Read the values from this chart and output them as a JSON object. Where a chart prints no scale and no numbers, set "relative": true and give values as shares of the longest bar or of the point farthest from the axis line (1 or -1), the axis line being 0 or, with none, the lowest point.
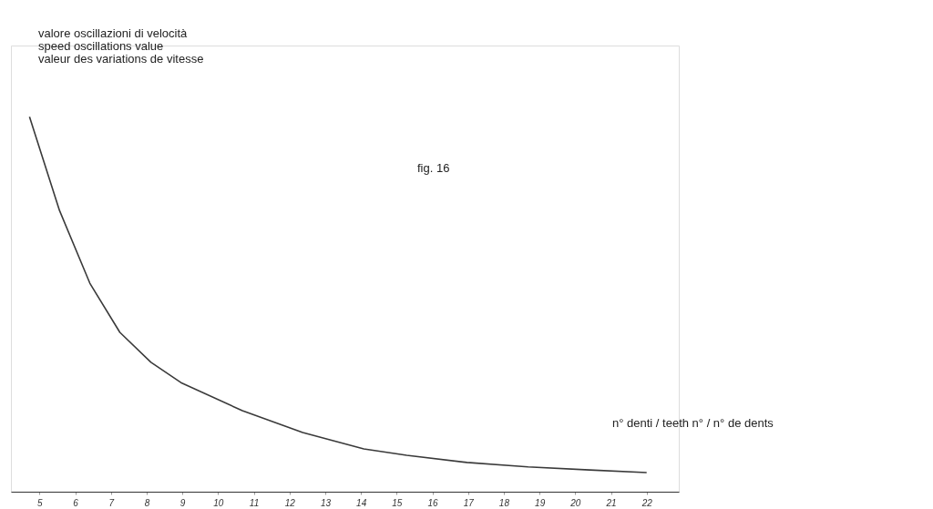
{
  "chart_data": {
    "type": "line",
    "relative": true,
    "ylabel": "valore oscillazioni di velocità\nspeed oscillations value\nvaleur des variations de vitesse",
    "xlabel": "n° denti  /  teeth n°  /  n° de dents",
    "annotations": [
      "fig. 16"
    ],
    "x": [
      4.72,
      5.56,
      6.41,
      7.25,
      8.12,
      8.96,
      10.68,
      12.37,
      14.08,
      15.28,
      16.97,
      18.68,
      20.4,
      22.0
    ],
    "series": [
      {
        "color": "#3a3a3a",
        "values": [
          1.0,
          0.75,
          0.556,
          0.425,
          0.345,
          0.291,
          0.216,
          0.158,
          0.114,
          0.097,
          0.078,
          0.066,
          0.058,
          0.051
        ]
      }
    ],
    "xlim": [
      4.2,
      22.9
    ],
    "xticks": [
      5,
      6,
      7,
      8,
      9,
      10,
      11,
      12,
      13,
      14,
      15,
      16,
      17,
      18,
      19,
      20,
      21,
      22
    ],
    "grid": false,
    "legend": false,
    "marker": "none",
    "line_style": "solid"
  }
}
